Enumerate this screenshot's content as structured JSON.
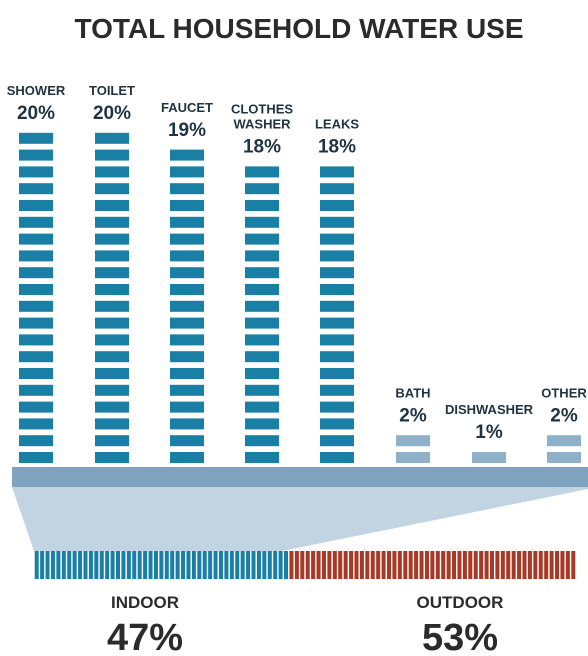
{
  "chart_data": {
    "type": "bar",
    "title": "TOTAL HOUSEHOLD WATER USE",
    "categories": [
      [
        "SHOWER"
      ],
      [
        "TOILET"
      ],
      [
        "FAUCET"
      ],
      [
        "CLOTHES",
        "WASHER"
      ],
      [
        "LEAKS"
      ],
      [
        "BATH"
      ],
      [
        "DISHWASHER"
      ],
      [
        "OTHER"
      ]
    ],
    "values": [
      20,
      20,
      19,
      18,
      18,
      2,
      1,
      2
    ],
    "value_labels": [
      "20%",
      "20%",
      "19%",
      "18%",
      "18%",
      "2%",
      "1%",
      "2%"
    ],
    "breakdown": {
      "type": "stacked-bar",
      "segments": [
        {
          "name": "INDOOR",
          "value": 47,
          "label": "47%"
        },
        {
          "name": "OUTDOOR",
          "value": 53,
          "label": "53%"
        }
      ]
    }
  },
  "colors": {
    "bar_main": "#1a7fa5",
    "bar_light": "#8fb0c9",
    "title_text": "#2b2b2b",
    "label_text": "#1f3340",
    "base": "#7ea4c0",
    "funnel": "#c2d3e2",
    "indoor": "#1a7fa5",
    "outdoor": "#a73a26"
  }
}
